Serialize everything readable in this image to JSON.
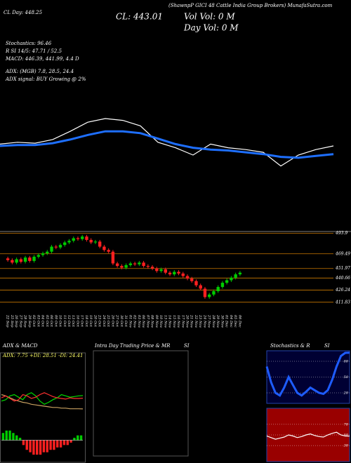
{
  "chart_data": [
    {
      "type": "line",
      "title": "(ShawnpP GICI 48 Cattle India Group Brokers) MunafaSutra.com",
      "annotations": [
        "CL Day: 448.25",
        "CL: 443.01",
        "Vol Vol: 0 M",
        "Day Vol: 0 M",
        "Stochastics: 96.46",
        "R SI 14/5: 47.71 / 52.5",
        "MACD: 446.39, 441.99, 4.4 D",
        "ADX: (MGB) 7.8, 28.5, 24.4",
        "ADX signal: BUY Growing @ 2%"
      ],
      "categories": [
        null,
        null,
        null,
        null,
        null,
        null,
        null,
        null,
        null,
        null,
        null,
        null,
        null,
        null,
        null,
        null,
        null,
        null,
        null,
        null
      ],
      "ylim": [
        0,
        100
      ],
      "series": [
        {
          "name": null,
          "color": "#ffffff",
          "values": [
            42,
            44,
            43,
            47,
            56,
            66,
            70,
            68,
            62,
            44,
            38,
            30,
            42,
            38,
            36,
            33,
            18,
            30,
            36,
            40
          ]
        },
        {
          "name": null,
          "color": "#1e6fff",
          "values": [
            40,
            41,
            41,
            43,
            47,
            52,
            56,
            56,
            54,
            48,
            42,
            38,
            36,
            35,
            33,
            31,
            28,
            27,
            29,
            31
          ]
        }
      ]
    },
    {
      "type": "candlestick",
      "categories": [
        "22 Sep",
        "25 Sep",
        "26 Sep",
        "27 Sep",
        "28 Sep",
        "29 Sep",
        "02 Oct",
        "03 Oct",
        "04 Oct",
        "05 Oct",
        "06 Oct",
        "09 Oct",
        "10 Oct",
        "11 Oct",
        "12 Oct",
        "13 Oct",
        "16 Oct",
        "17 Oct",
        "18 Oct",
        "19 Oct",
        "20 Oct",
        "23 Oct",
        "24 Oct",
        "25 Oct",
        "26 Oct",
        "27 Oct",
        "30 Oct",
        "31 Oct",
        "01 Nov",
        "02 Nov",
        "03 Nov",
        "06 Nov",
        "07 Nov",
        "08 Nov",
        "09 Nov",
        "10 Nov",
        "13 Nov",
        "14 Nov",
        "15 Nov",
        "16 Nov",
        "17 Nov",
        "20 Nov",
        "21 Nov",
        "22 Nov",
        "23 Nov",
        "24 Nov",
        "27 Nov",
        "28 Nov",
        "29 Nov",
        "30 Nov",
        "01 Dec",
        "04 Dec",
        "05 Dec",
        "06 Dec"
      ],
      "open": [
        464,
        462,
        459,
        463,
        460,
        465,
        461,
        466,
        468,
        470,
        472,
        478,
        477,
        480,
        483,
        485,
        488,
        487,
        490,
        486,
        483,
        484,
        478,
        474,
        472,
        458,
        455,
        453,
        456,
        458,
        457,
        459,
        455,
        454,
        452,
        449,
        451,
        447,
        445,
        448,
        446,
        443,
        440,
        437,
        432,
        428,
        418,
        421,
        425,
        430,
        435,
        438,
        441,
        445
      ],
      "high": [
        466,
        464,
        465,
        465,
        467,
        467,
        468,
        470,
        472,
        474,
        480,
        480,
        482,
        485,
        487,
        490,
        490,
        492,
        492,
        488,
        486,
        486,
        480,
        476,
        474,
        460,
        457,
        458,
        460,
        460,
        461,
        461,
        457,
        456,
        454,
        453,
        453,
        449,
        450,
        450,
        448,
        445,
        442,
        439,
        434,
        430,
        423,
        427,
        432,
        437,
        440,
        443,
        447,
        449
      ],
      "low": [
        460,
        457,
        457,
        458,
        458,
        459,
        459,
        464,
        466,
        468,
        470,
        475,
        475,
        478,
        481,
        483,
        485,
        485,
        484,
        481,
        481,
        476,
        472,
        470,
        456,
        453,
        451,
        451,
        454,
        455,
        455,
        453,
        452,
        450,
        447,
        447,
        445,
        443,
        443,
        444,
        441,
        438,
        435,
        430,
        426,
        416,
        416,
        419,
        423,
        428,
        433,
        436,
        439,
        443
      ],
      "close": [
        462,
        459,
        463,
        460,
        465,
        461,
        466,
        468,
        470,
        472,
        478,
        477,
        480,
        483,
        485,
        488,
        487,
        490,
        486,
        483,
        484,
        478,
        474,
        472,
        458,
        455,
        453,
        456,
        458,
        457,
        459,
        455,
        454,
        452,
        449,
        451,
        447,
        445,
        448,
        446,
        443,
        440,
        437,
        432,
        428,
        418,
        421,
        425,
        430,
        435,
        438,
        441,
        445,
        447
      ],
      "up_color": "#00cc00",
      "down_color": "#ff2020",
      "grid_color": "#cc7a00",
      "ylim": [
        400,
        496
      ],
      "yticks": [
        493.9,
        469.49,
        451.97,
        440.66,
        426.24,
        411.83
      ]
    },
    {
      "type": "line",
      "title": "ADX  & MACD",
      "subtitle": "ADX: 7.75  +DI: 28.51  -DI: 24.41",
      "categories": [
        null,
        null,
        null,
        null,
        null,
        null,
        null,
        null,
        null,
        null,
        null,
        null,
        null,
        null,
        null,
        null,
        null,
        null,
        null,
        null
      ],
      "ylim": [
        0,
        60
      ],
      "series": [
        {
          "name": null,
          "color": "#c8a060",
          "values": [
            30,
            28,
            25,
            22,
            20,
            18,
            17,
            15,
            14,
            13,
            12,
            11,
            10,
            10,
            9,
            9,
            8,
            8,
            8,
            7.75
          ]
        },
        {
          "name": null,
          "color": "#00dd00",
          "values": [
            20,
            22,
            28,
            30,
            26,
            22,
            30,
            33,
            28,
            20,
            15,
            18,
            22,
            25,
            30,
            28,
            26,
            27,
            28,
            28.51
          ]
        },
        {
          "name": null,
          "color": "#ff3030",
          "values": [
            25,
            28,
            24,
            20,
            22,
            30,
            28,
            24,
            26,
            30,
            33,
            30,
            27,
            25,
            24,
            23,
            25,
            24,
            24,
            24.41
          ]
        }
      ]
    },
    {
      "type": "bar",
      "categories": [
        null,
        null,
        null,
        null,
        null,
        null,
        null,
        null,
        null,
        null,
        null,
        null,
        null,
        null,
        null,
        null,
        null,
        null,
        null,
        null,
        null,
        null,
        null,
        null
      ],
      "values": [
        3,
        4,
        4,
        3,
        2,
        1,
        -2,
        -4,
        -5,
        -6,
        -6,
        -6,
        -5,
        -5,
        -4,
        -4,
        -3,
        -3,
        -2,
        -2,
        -1,
        1,
        2,
        2
      ],
      "ylim": [
        -8,
        8
      ],
      "up_color": "#00cc00",
      "down_color": "#ff2020"
    },
    {
      "type": "text",
      "title": "Intra Day Trading Price  & MR",
      "subtitle": "SI"
    },
    {
      "type": "line",
      "title": "Stochastics & R",
      "subtitle": "SI",
      "categories": [
        null,
        null,
        null,
        null,
        null,
        null,
        null,
        null,
        null,
        null,
        null,
        null,
        null,
        null,
        null,
        null,
        null,
        null,
        null,
        null
      ],
      "ylim": [
        0,
        100
      ],
      "yticks": [
        20,
        50,
        80
      ],
      "background": "#000033",
      "series": [
        {
          "name": null,
          "color": "#1e5cff",
          "values": [
            70,
            40,
            20,
            15,
            30,
            50,
            35,
            20,
            15,
            22,
            30,
            25,
            20,
            18,
            25,
            45,
            70,
            90,
            96,
            96.46
          ]
        }
      ]
    },
    {
      "type": "line",
      "categories": [
        null,
        null,
        null,
        null,
        null,
        null,
        null,
        null,
        null,
        null,
        null,
        null,
        null,
        null,
        null,
        null,
        null,
        null,
        null,
        null
      ],
      "ylim": [
        0,
        100
      ],
      "yticks": [
        30,
        50,
        70
      ],
      "background": "#990000",
      "series": [
        {
          "name": null,
          "color": "#ffffff",
          "values": [
            48,
            45,
            42,
            44,
            46,
            50,
            48,
            45,
            47,
            50,
            52,
            49,
            47,
            46,
            50,
            53,
            55,
            50,
            48,
            47.71
          ]
        }
      ]
    }
  ]
}
